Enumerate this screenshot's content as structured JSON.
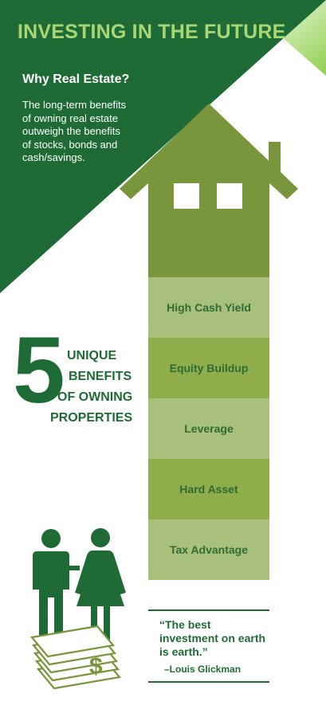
{
  "header": {
    "title": "INVESTING IN THE FUTURE",
    "subtitle": "Why Real Estate?",
    "intro_lines": [
      "The long-term benefits",
      "of owning real estate",
      "outweigh the benefits",
      "of stocks, bonds and",
      "cash/savings."
    ]
  },
  "benefits_heading": {
    "number": "5",
    "lines": [
      "UNIQUE",
      "BENEFITS",
      "OF OWNING",
      "PROPERTIES"
    ]
  },
  "benefits": [
    "High Cash Yield",
    "Equity Buildup",
    "Leverage",
    "Hard Asset",
    "Tax Advantage"
  ],
  "quote": {
    "text": "“The best investment on earth is earth.”",
    "author": "–Louis Glickman"
  },
  "colors": {
    "dark_green": "#1e6b35",
    "house_green": "#7a963d",
    "light_green": "#a9d675",
    "rung_light": "#a9c07c",
    "rung_mid": "#8fad4b"
  }
}
